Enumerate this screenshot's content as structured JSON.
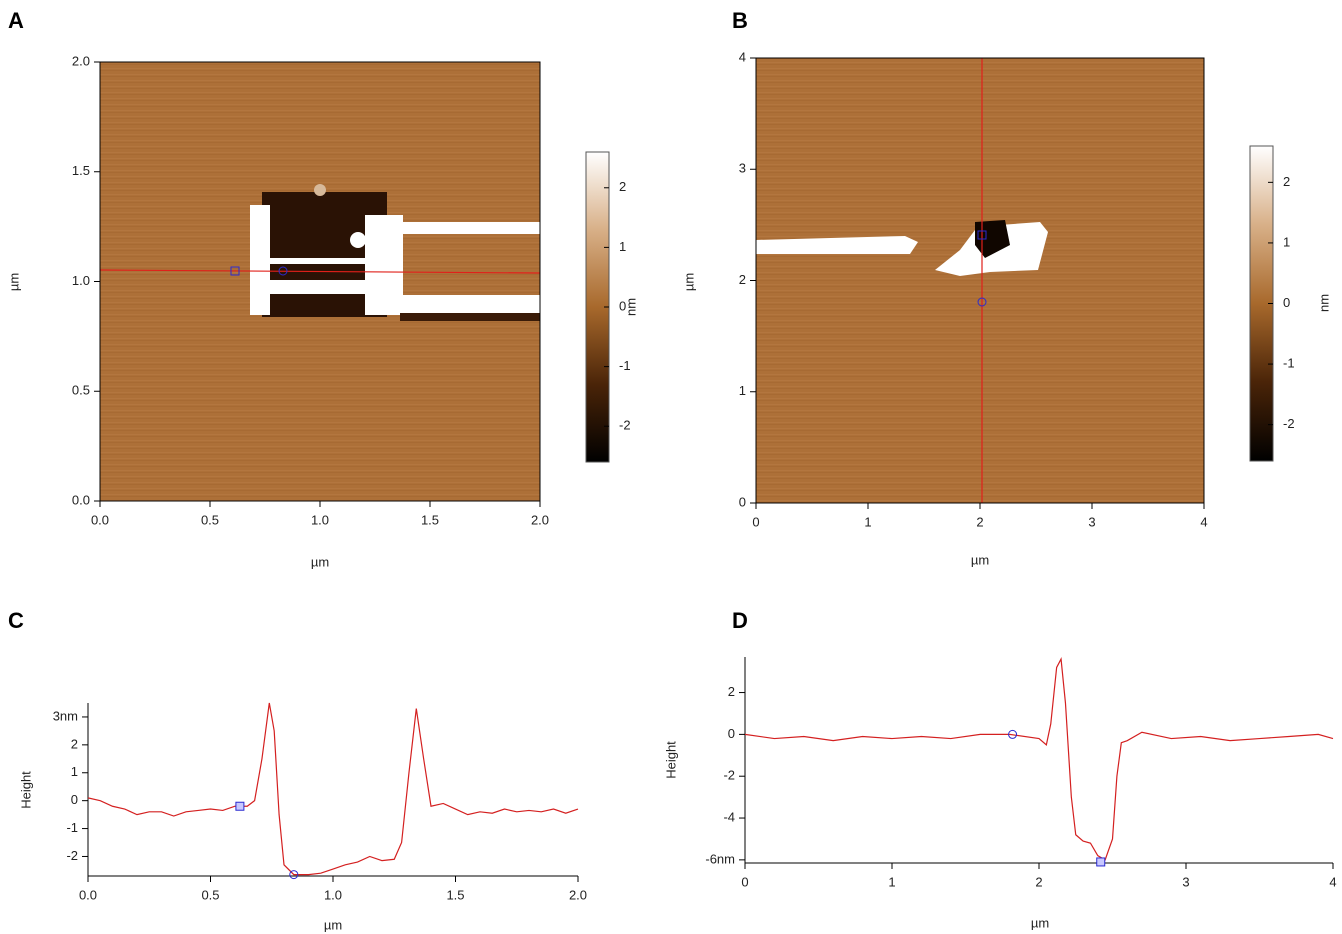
{
  "chart_data": [
    {
      "type": "image",
      "panel": "A",
      "xlabel": "µm",
      "ylabel": "µm",
      "xlim": [
        0,
        2
      ],
      "ylim": [
        0,
        2
      ],
      "xticks": [
        {
          "value": 0,
          "label": "0.0"
        },
        0.5,
        {
          "value": 1,
          "label": "1.0"
        },
        1.5,
        {
          "value": 2,
          "label": "2.0"
        }
      ],
      "yticks": [
        {
          "value": 0,
          "label": "0.0"
        },
        0.5,
        {
          "value": 1,
          "label": "1.0"
        },
        1.5,
        {
          "value": 2,
          "label": "2.0"
        }
      ],
      "colorbar_label": "nm",
      "clim": [
        -2.6,
        2.6
      ],
      "cticks": [
        -2,
        -1,
        0,
        1,
        2
      ]
    },
    {
      "type": "image",
      "panel": "B",
      "xlabel": "µm",
      "ylabel": "µm",
      "xlim": [
        0,
        4
      ],
      "ylim": [
        0,
        4
      ],
      "xticks": [
        0,
        1,
        2,
        3,
        4
      ],
      "yticks": [
        0,
        1,
        2,
        3,
        4
      ],
      "colorbar_label": "nm",
      "clim": [
        -2.6,
        2.6
      ],
      "cticks": [
        -2,
        -1,
        0,
        1,
        2
      ]
    },
    {
      "type": "line",
      "panel": "C",
      "xlabel": "µm",
      "ylabel": "Height",
      "color": "#d42020",
      "xlim": [
        0,
        2
      ],
      "ylim": [
        -2.7,
        3.5
      ],
      "xticks": [
        {
          "value": 0,
          "label": "0.0"
        },
        0.5,
        {
          "value": 1,
          "label": "1.0"
        },
        1.5,
        {
          "value": 2,
          "label": "2.0"
        }
      ],
      "yticks": [
        -2,
        -1,
        0,
        1,
        2,
        {
          "value": 3,
          "label": "3nm"
        }
      ],
      "x": [
        0,
        0.05,
        0.1,
        0.15,
        0.2,
        0.25,
        0.3,
        0.35,
        0.4,
        0.45,
        0.5,
        0.55,
        0.6,
        0.65,
        0.68,
        0.71,
        0.74,
        0.76,
        0.78,
        0.8,
        0.84,
        0.9,
        0.95,
        1.0,
        1.05,
        1.1,
        1.15,
        1.2,
        1.25,
        1.28,
        1.31,
        1.34,
        1.37,
        1.4,
        1.45,
        1.5,
        1.55,
        1.6,
        1.65,
        1.7,
        1.75,
        1.8,
        1.85,
        1.9,
        1.95,
        2.0
      ],
      "values": [
        0.1,
        0,
        -0.2,
        -0.3,
        -0.5,
        -0.4,
        -0.4,
        -0.55,
        -0.4,
        -0.35,
        -0.3,
        -0.35,
        -0.2,
        -0.2,
        0,
        1.5,
        3.5,
        2.5,
        -0.5,
        -2.3,
        -2.65,
        -2.65,
        -2.6,
        -2.45,
        -2.3,
        -2.2,
        -2.0,
        -2.15,
        -2.1,
        -1.5,
        1.0,
        3.3,
        1.5,
        -0.2,
        -0.1,
        -0.3,
        -0.5,
        -0.4,
        -0.45,
        -0.3,
        -0.4,
        -0.35,
        -0.4,
        -0.3,
        -0.45,
        -0.3
      ],
      "cursors": [
        {
          "x": 0.62,
          "y": -0.2,
          "shape": "square"
        },
        {
          "x": 0.84,
          "y": -2.65,
          "shape": "circle"
        }
      ]
    },
    {
      "type": "line",
      "panel": "D",
      "xlabel": "µm",
      "ylabel": "Height",
      "color": "#d42020",
      "xlim": [
        0,
        4
      ],
      "ylim": [
        -6.15,
        3.7
      ],
      "xticks": [
        0,
        1,
        2,
        3,
        4
      ],
      "yticks": [
        {
          "value": -6,
          "label": "-6nm"
        },
        -4,
        -2,
        0,
        2
      ],
      "x": [
        0,
        0.2,
        0.4,
        0.6,
        0.8,
        1.0,
        1.2,
        1.4,
        1.6,
        1.8,
        2.0,
        2.05,
        2.08,
        2.12,
        2.15,
        2.18,
        2.22,
        2.25,
        2.3,
        2.35,
        2.4,
        2.45,
        2.5,
        2.53,
        2.56,
        2.6,
        2.7,
        2.9,
        3.1,
        3.3,
        3.5,
        3.7,
        3.9,
        4.0
      ],
      "values": [
        0,
        -0.2,
        -0.1,
        -0.3,
        -0.1,
        -0.2,
        -0.1,
        -0.2,
        0,
        0,
        -0.2,
        -0.5,
        0.5,
        3.2,
        3.6,
        1.5,
        -3,
        -4.8,
        -5.1,
        -5.2,
        -5.8,
        -6,
        -5,
        -2,
        -0.4,
        -0.3,
        0.1,
        -0.2,
        -0.1,
        -0.3,
        -0.2,
        -0.1,
        0,
        -0.2
      ],
      "cursors": [
        {
          "x": 1.82,
          "y": 0,
          "shape": "circle"
        },
        {
          "x": 2.42,
          "y": -6.1,
          "shape": "square"
        }
      ]
    }
  ]
}
